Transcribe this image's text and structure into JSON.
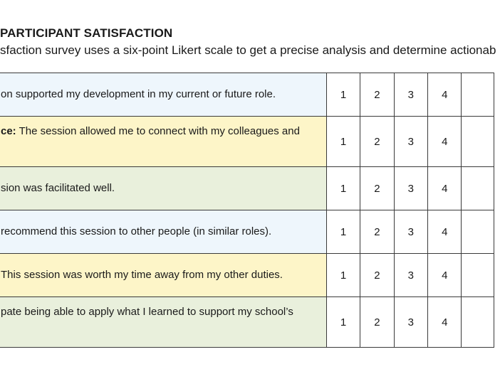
{
  "header": {
    "title": "PARTICIPANT SATISFACTION",
    "subtitle": "sfaction survey uses a six-point Likert scale to get a precise analysis and determine actionab"
  },
  "colors": {
    "row_blue": "#eef6fc",
    "row_yellow": "#fdf5c8",
    "row_green": "#e9f0dc",
    "border": "#3a3a3a"
  },
  "rows": [
    {
      "color": "blue",
      "bold_prefix": "",
      "lines": [
        "on supported my development in my current or future role."
      ],
      "scale": [
        "1",
        "2",
        "3",
        "4"
      ]
    },
    {
      "color": "yellow",
      "bold_prefix": "ce:",
      "lines": [
        " The session allowed me to connect with my colleagues and",
        ""
      ],
      "scale": [
        "1",
        "2",
        "3",
        "4"
      ]
    },
    {
      "color": "green",
      "bold_prefix": "",
      "lines": [
        "sion was facilitated well."
      ],
      "scale": [
        "1",
        "2",
        "3",
        "4"
      ]
    },
    {
      "color": "blue",
      "bold_prefix": "",
      "lines": [
        "recommend this session to other people (in similar roles)."
      ],
      "scale": [
        "1",
        "2",
        "3",
        "4"
      ]
    },
    {
      "color": "yellow",
      "bold_prefix": "",
      "lines": [
        " This session was worth my time away from my other duties."
      ],
      "scale": [
        "1",
        "2",
        "3",
        "4"
      ]
    },
    {
      "color": "green",
      "bold_prefix": "",
      "lines": [
        "pate being able to apply what I learned to support my school’s",
        ""
      ],
      "scale": [
        "1",
        "2",
        "3",
        "4"
      ]
    }
  ]
}
